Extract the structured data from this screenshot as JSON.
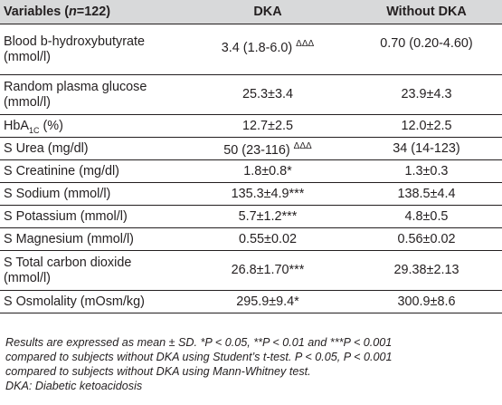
{
  "table": {
    "header": {
      "variables_prefix": "Variables (",
      "variables_n": "n",
      "variables_suffix": "=122)",
      "dka": "DKA",
      "without": "Without DKA"
    },
    "rows": [
      {
        "label": "Blood b-hydroxybutyrate (mmol/l)",
        "dka": "3.4 (1.8-6.0)",
        "dka_mark": "ΔΔΔ",
        "without": "0.70 (0.20-4.60)"
      },
      {
        "label": "Random plasma glucose (mmol/l)",
        "dka": "25.3±3.4",
        "without": "23.9±4.3"
      },
      {
        "label_main": "HbA",
        "label_sub": "1C",
        "label_rest": " (%)",
        "dka": "12.7±2.5",
        "without": "12.0±2.5"
      },
      {
        "label": "S Urea (mg/dl)",
        "dka": "50 (23-116)",
        "dka_mark": "ΔΔΔ",
        "without": "34 (14-123)"
      },
      {
        "label": "S Creatinine (mg/dl)",
        "dka": "1.8±0.8*",
        "without": "1.3±0.3"
      },
      {
        "label": "S Sodium (mmol/l)",
        "dka": "135.3±4.9***",
        "without": "138.5±4.4"
      },
      {
        "label": "S Potassium (mmol/l)",
        "dka": "5.7±1.2***",
        "without": "4.8±0.5"
      },
      {
        "label": "S Magnesium (mmol/l)",
        "dka": "0.55±0.02",
        "without": "0.56±0.02"
      },
      {
        "label": "S Total carbon dioxide (mmol/l)",
        "dka": "26.8±1.70***",
        "without": "29.38±2.13"
      },
      {
        "label": "S Osmolality (mOsm/kg)",
        "dka": "295.9±9.4*",
        "without": "300.9±8.6"
      }
    ]
  },
  "footnotes": {
    "line1": "Results are expressed as mean ± SD. *P < 0.05, **P < 0.01 and ***P < 0.001",
    "line2": "compared to subjects without DKA using Student’s t-test.  P < 0.05,  P < 0.001",
    "line3": "compared to subjects without DKA using Mann-Whitney test.",
    "line4": "DKA: Diabetic ketoacidosis"
  }
}
